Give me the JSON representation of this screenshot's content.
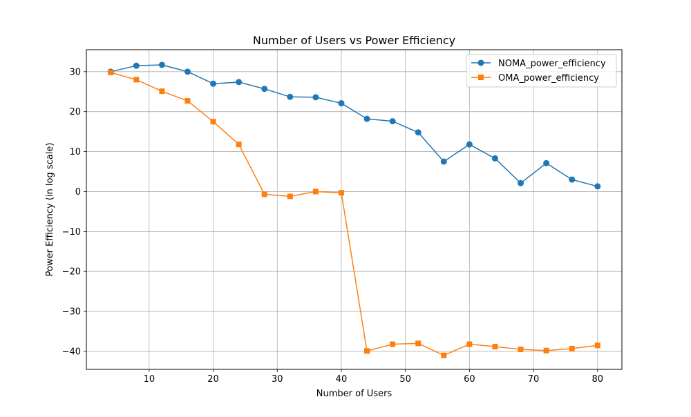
{
  "chart_data": {
    "type": "line",
    "title": "Number of Users vs Power Efficiency",
    "xlabel": "Number of Users",
    "ylabel": "Power Efficiency (in log scale)",
    "xlim": [
      0.2,
      83.8
    ],
    "ylim": [
      -44.5,
      35.5
    ],
    "xticks": [
      10,
      20,
      30,
      40,
      50,
      60,
      70,
      80
    ],
    "yticks": [
      -40,
      -30,
      -20,
      -10,
      0,
      10,
      20,
      30
    ],
    "ytick_labels": [
      "−40",
      "−30",
      "−20",
      "−10",
      "0",
      "10",
      "20",
      "30"
    ],
    "grid": true,
    "legend_position": "top-right",
    "x": [
      4,
      8,
      12,
      16,
      20,
      24,
      28,
      32,
      36,
      40,
      44,
      48,
      52,
      56,
      60,
      64,
      68,
      72,
      76,
      80
    ],
    "series": [
      {
        "name": "NOMA_power_efficiency",
        "color": "#1f77b4",
        "marker": "circle",
        "values": [
          30.0,
          31.5,
          31.7,
          30.0,
          27.0,
          27.4,
          25.7,
          23.7,
          23.6,
          22.1,
          18.2,
          17.6,
          14.8,
          7.5,
          11.8,
          8.3,
          2.1,
          7.1,
          3.0,
          1.3
        ]
      },
      {
        "name": "OMA_power_efficiency",
        "color": "#ff7f0e",
        "marker": "square",
        "values": [
          29.8,
          28.0,
          25.1,
          22.7,
          17.5,
          11.8,
          -0.7,
          -1.2,
          0.0,
          -0.3,
          -39.9,
          -38.2,
          -38.0,
          -41.0,
          -38.2,
          -38.8,
          -39.5,
          -39.8,
          -39.3,
          -38.5
        ]
      }
    ]
  }
}
